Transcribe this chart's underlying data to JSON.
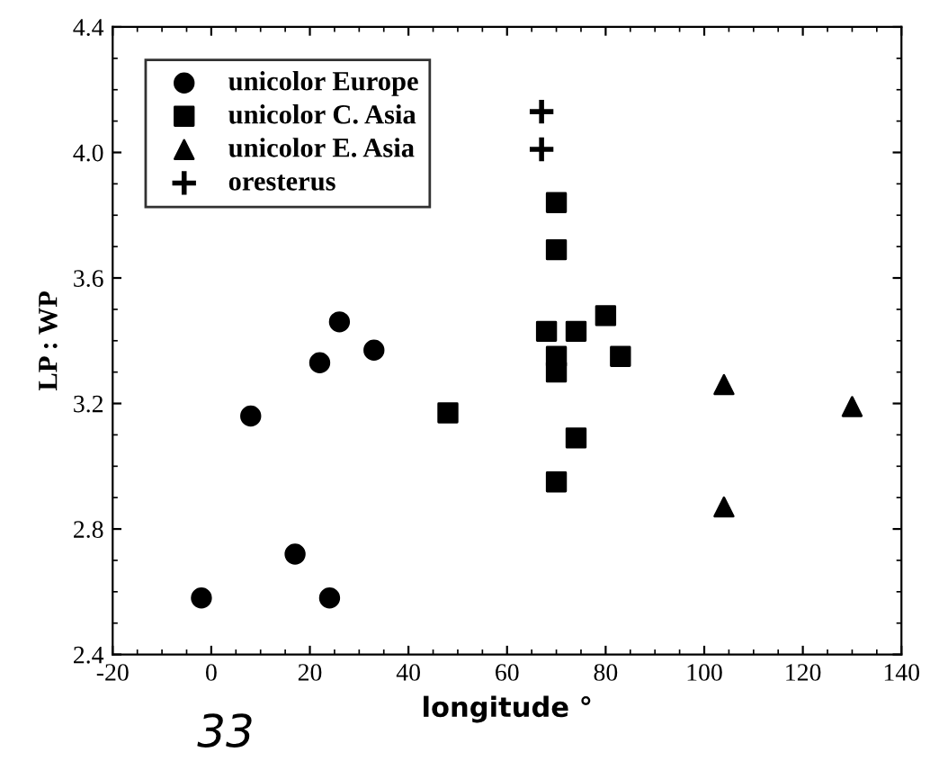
{
  "chart_data": {
    "type": "scatter",
    "xlabel": "longitude °",
    "ylabel": "LP : WP",
    "xlim": [
      -20,
      140
    ],
    "xticks": [
      -20,
      0,
      20,
      40,
      60,
      80,
      100,
      120,
      140
    ],
    "ylim": [
      2.4,
      4.4
    ],
    "yticks": [
      2.4,
      2.8,
      3.2,
      3.6,
      {
        "value": 4.0,
        "label": "4.0"
      },
      4.4
    ],
    "grid": false,
    "legend": "top left",
    "annotations": [
      "33"
    ],
    "series": [
      {
        "name": "unicolor Europe",
        "color": "#000000",
        "marker": "circle",
        "x": [
          -2,
          8,
          17,
          24,
          22,
          26,
          33
        ],
        "values": [
          2.58,
          3.16,
          2.72,
          2.58,
          3.33,
          3.46,
          3.37
        ]
      },
      {
        "name": "unicolor C. Asia",
        "color": "#000000",
        "marker": "square",
        "x": [
          70,
          70,
          68,
          74,
          80,
          83,
          70,
          70,
          48,
          74,
          70
        ],
        "values": [
          3.84,
          3.69,
          3.43,
          3.43,
          3.48,
          3.35,
          3.35,
          3.3,
          3.17,
          3.09,
          2.95
        ]
      },
      {
        "name": "unicolor E. Asia",
        "color": "#000000",
        "marker": "triangle",
        "x": [
          104,
          130,
          104
        ],
        "values": [
          3.26,
          3.19,
          2.87
        ]
      },
      {
        "name": "oresterus",
        "color": "#000000",
        "marker": "cross",
        "x": [
          67,
          67
        ],
        "values": [
          4.13,
          4.01
        ]
      }
    ]
  }
}
